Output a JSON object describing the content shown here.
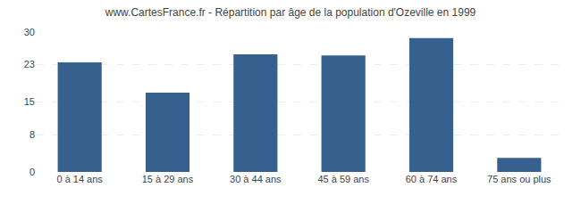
{
  "chart_data": {
    "type": "bar",
    "title": "www.CartesFrance.fr - Répartition par âge de la population d'Ozeville en 1999",
    "categories": [
      "0 à 14 ans",
      "15 à 29 ans",
      "30 à 44 ans",
      "45 à 59 ans",
      "60 à 74 ans",
      "75 ans ou plus"
    ],
    "values": [
      23.5,
      17.0,
      25.2,
      25.0,
      28.7,
      3.0
    ],
    "color": "#36618e",
    "ylim": [
      0,
      30
    ],
    "yticks": [
      0,
      8,
      15,
      23,
      30
    ],
    "grid": true
  }
}
